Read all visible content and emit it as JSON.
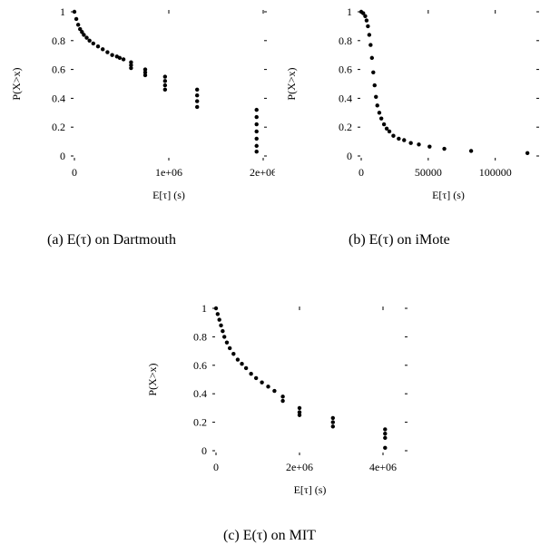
{
  "chart_data": [
    {
      "type": "scatter",
      "title": "",
      "caption": "(a) E(τ) on Dartmouth",
      "xlabel": "E[τ] (s)",
      "ylabel": "P(X>x)",
      "xlim": [
        0,
        2000000
      ],
      "ylim": [
        0,
        1
      ],
      "xticks": [
        0,
        1000000,
        2000000
      ],
      "xtick_labels": [
        "0",
        "1e+06",
        "2e+06"
      ],
      "yticks": [
        0,
        0.2,
        0.4,
        0.6,
        0.8,
        1
      ],
      "ytick_labels": [
        "0",
        "0.2",
        "0.4",
        "0.6",
        "0.8",
        "1"
      ],
      "grid": false,
      "series": [
        {
          "points": [
            [
              0,
              1.0
            ],
            [
              20000,
              0.95
            ],
            [
              40000,
              0.91
            ],
            [
              60000,
              0.88
            ],
            [
              80000,
              0.86
            ],
            [
              100000,
              0.84
            ],
            [
              130000,
              0.82
            ],
            [
              160000,
              0.8
            ],
            [
              200000,
              0.78
            ],
            [
              250000,
              0.76
            ],
            [
              300000,
              0.74
            ],
            [
              350000,
              0.72
            ],
            [
              400000,
              0.7
            ],
            [
              450000,
              0.69
            ],
            [
              480000,
              0.68
            ],
            [
              520000,
              0.67
            ],
            [
              600000,
              0.65
            ],
            [
              600000,
              0.63
            ],
            [
              600000,
              0.61
            ],
            [
              750000,
              0.6
            ],
            [
              750000,
              0.58
            ],
            [
              750000,
              0.56
            ],
            [
              960000,
              0.55
            ],
            [
              960000,
              0.52
            ],
            [
              960000,
              0.49
            ],
            [
              960000,
              0.46
            ],
            [
              1300000,
              0.46
            ],
            [
              1300000,
              0.42
            ],
            [
              1300000,
              0.38
            ],
            [
              1300000,
              0.34
            ],
            [
              1930000,
              0.32
            ],
            [
              1930000,
              0.27
            ],
            [
              1930000,
              0.22
            ],
            [
              1930000,
              0.17
            ],
            [
              1930000,
              0.12
            ],
            [
              1930000,
              0.07
            ],
            [
              1930000,
              0.03
            ]
          ]
        }
      ]
    },
    {
      "type": "scatter",
      "title": "",
      "caption": "(b) E(τ) on iMote",
      "xlabel": "E[τ] (s)",
      "ylabel": "P(X>x)",
      "xlim": [
        0,
        130000
      ],
      "ylim": [
        0,
        1
      ],
      "xticks": [
        0,
        50000,
        100000
      ],
      "xtick_labels": [
        "0",
        "50000",
        "100000"
      ],
      "yticks": [
        0,
        0.2,
        0.4,
        0.6,
        0.8,
        1
      ],
      "ytick_labels": [
        "0",
        "0.2",
        "0.4",
        "0.6",
        "0.8",
        "1"
      ],
      "grid": false,
      "series": [
        {
          "points": [
            [
              0,
              1.0
            ],
            [
              1500,
              0.99
            ],
            [
              3000,
              0.97
            ],
            [
              4000,
              0.94
            ],
            [
              5000,
              0.9
            ],
            [
              6000,
              0.84
            ],
            [
              7000,
              0.77
            ],
            [
              8000,
              0.68
            ],
            [
              9000,
              0.58
            ],
            [
              10000,
              0.49
            ],
            [
              11000,
              0.41
            ],
            [
              12000,
              0.35
            ],
            [
              13500,
              0.3
            ],
            [
              15000,
              0.26
            ],
            [
              17000,
              0.22
            ],
            [
              19000,
              0.19
            ],
            [
              21000,
              0.17
            ],
            [
              24000,
              0.14
            ],
            [
              28000,
              0.12
            ],
            [
              32000,
              0.11
            ],
            [
              37000,
              0.09
            ],
            [
              43000,
              0.08
            ],
            [
              51000,
              0.065
            ],
            [
              62000,
              0.05
            ],
            [
              82000,
              0.035
            ],
            [
              124000,
              0.02
            ]
          ]
        }
      ]
    },
    {
      "type": "scatter",
      "title": "",
      "caption": "(c) E(τ) on MIT",
      "xlabel": "E[τ] (s)",
      "ylabel": "P(X>x)",
      "xlim": [
        0,
        4500000
      ],
      "ylim": [
        0,
        1
      ],
      "xticks": [
        0,
        2000000,
        4000000
      ],
      "xtick_labels": [
        "0",
        "2e+06",
        "4e+06"
      ],
      "yticks": [
        0,
        0.2,
        0.4,
        0.6,
        0.8,
        1
      ],
      "ytick_labels": [
        "0",
        "0.2",
        "0.4",
        "0.6",
        "0.8",
        "1"
      ],
      "grid": false,
      "series": [
        {
          "points": [
            [
              0,
              1.0
            ],
            [
              40000,
              0.96
            ],
            [
              80000,
              0.92
            ],
            [
              120000,
              0.88
            ],
            [
              160000,
              0.84
            ],
            [
              200000,
              0.8
            ],
            [
              260000,
              0.76
            ],
            [
              330000,
              0.72
            ],
            [
              420000,
              0.68
            ],
            [
              520000,
              0.64
            ],
            [
              620000,
              0.61
            ],
            [
              720000,
              0.58
            ],
            [
              840000,
              0.54
            ],
            [
              960000,
              0.51
            ],
            [
              1100000,
              0.48
            ],
            [
              1250000,
              0.45
            ],
            [
              1400000,
              0.42
            ],
            [
              1600000,
              0.38
            ],
            [
              1600000,
              0.35
            ],
            [
              2000000,
              0.3
            ],
            [
              2000000,
              0.27
            ],
            [
              2000000,
              0.25
            ],
            [
              2800000,
              0.23
            ],
            [
              2800000,
              0.2
            ],
            [
              2800000,
              0.17
            ],
            [
              4050000,
              0.15
            ],
            [
              4050000,
              0.12
            ],
            [
              4050000,
              0.09
            ],
            [
              4050000,
              0.02
            ]
          ]
        }
      ]
    }
  ]
}
